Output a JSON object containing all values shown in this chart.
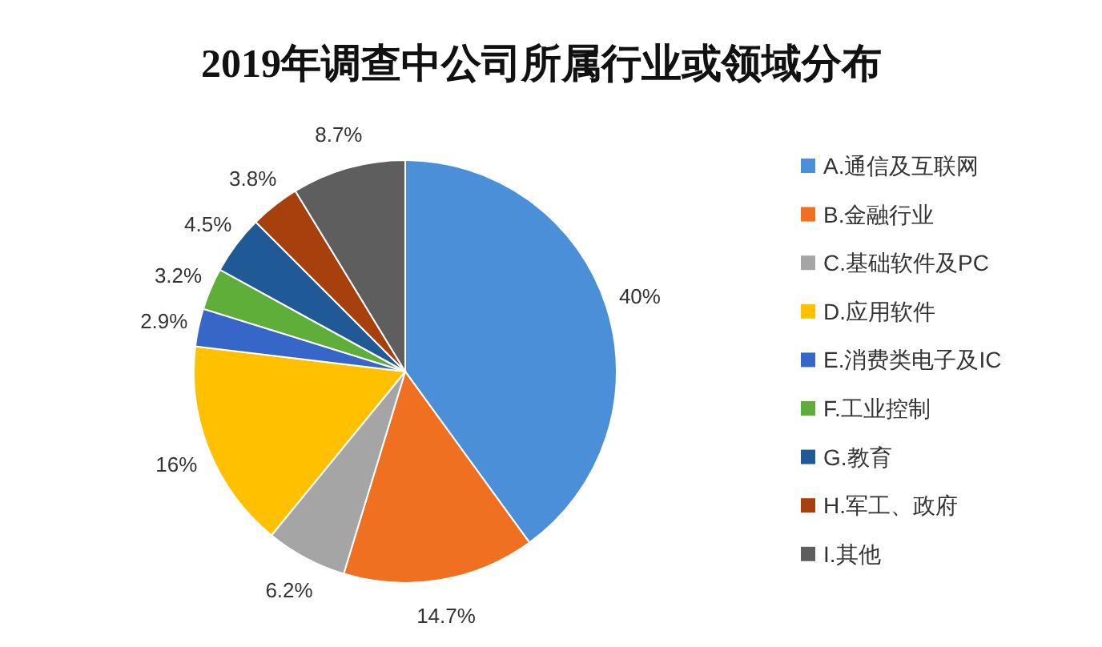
{
  "chart_data": {
    "type": "pie",
    "title": "2019年调查中公司所属行业或领域分布",
    "categories": [
      "A.通信及互联网",
      "B.金融行业",
      "C.基础软件及PC",
      "D.应用软件",
      "E.消费类电子及IC",
      "F.工业控制",
      "G.教育",
      "H.军工、政府",
      "I.其他"
    ],
    "values": [
      40,
      14.7,
      6.2,
      16,
      2.9,
      3.2,
      4.5,
      3.8,
      8.7
    ],
    "value_labels": [
      "40%",
      "14.7%",
      "6.2%",
      "16%",
      "2.9%",
      "3.2%",
      "4.5%",
      "3.8%",
      "8.7%"
    ],
    "colors": [
      "#4a8fd8",
      "#f07022",
      "#a5a5a5",
      "#ffc000",
      "#3566c8",
      "#5fae3a",
      "#1f5a96",
      "#a8400e",
      "#5e5e5e"
    ],
    "legend": "right"
  }
}
